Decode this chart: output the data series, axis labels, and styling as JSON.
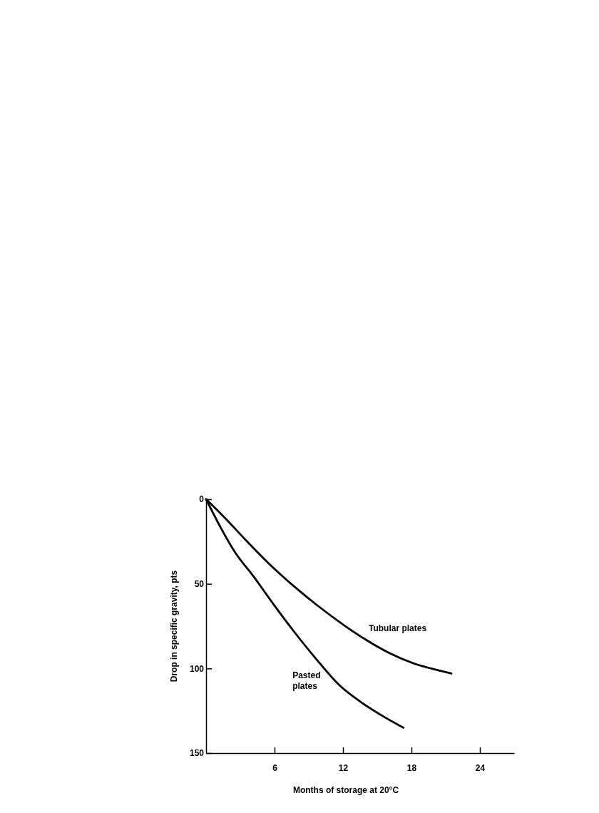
{
  "chart_data": {
    "type": "line",
    "xlabel": "Months of storage at 20°C",
    "ylabel": "Drop in specific gravity, pts",
    "xlim": [
      0,
      27
    ],
    "xticks": [
      6,
      12,
      18,
      24
    ],
    "ylim": [
      150,
      0
    ],
    "yticks": [
      0,
      50,
      100,
      150
    ],
    "grid": false,
    "legend": false,
    "marker": "none",
    "line_style": "solid",
    "series": [
      {
        "name": "Tubular plates",
        "color": "#000000",
        "x": [
          0,
          1.5,
          3.6,
          5.5,
          7.8,
          9.8,
          12.1,
          14,
          16.1,
          18.2,
          20.3,
          21.5
        ],
        "values": [
          0,
          10,
          25,
          38,
          52,
          63,
          74.5,
          83,
          91,
          97,
          101,
          103
        ]
      },
      {
        "name": "Pasted plates",
        "color": "#000000",
        "x": [
          0,
          1.3,
          2.5,
          4.2,
          5.9,
          7.8,
          9.6,
          11.7,
          13.6,
          15.7,
          17.3
        ],
        "values": [
          0,
          17,
          31,
          46,
          62,
          79,
          94,
          110,
          120,
          129,
          135
        ]
      }
    ]
  }
}
